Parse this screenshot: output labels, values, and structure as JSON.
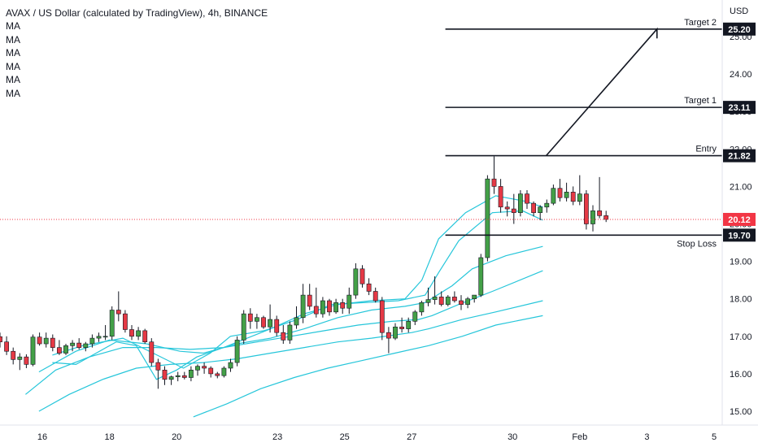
{
  "header": {
    "title": "AVAX / US Dollar (calculated by TradingView), 4h, BINANCE",
    "indicators": [
      "MA",
      "MA",
      "MA",
      "MA",
      "MA",
      "MA"
    ]
  },
  "axis": {
    "currency": "USD"
  },
  "chart_data": {
    "type": "candlestick",
    "title": "AVAX / US Dollar (calculated by TradingView), 4h, BINANCE",
    "ylim": [
      14.7,
      26.3
    ],
    "y_ticks": [
      {
        "value": 15.0,
        "label": "15.00"
      },
      {
        "value": 16.0,
        "label": "16.00"
      },
      {
        "value": 17.0,
        "label": "17.00"
      },
      {
        "value": 18.0,
        "label": "18.00"
      },
      {
        "value": 19.0,
        "label": "19.00"
      },
      {
        "value": 20.0,
        "label": "20.00"
      },
      {
        "value": 21.0,
        "label": "21.00"
      },
      {
        "value": 22.0,
        "label": "22.00"
      },
      {
        "value": 23.0,
        "label": "23.00"
      },
      {
        "value": 24.0,
        "label": "24.00"
      },
      {
        "value": 25.0,
        "label": "25.00"
      }
    ],
    "x_ticks": [
      {
        "day": 16,
        "label": "16"
      },
      {
        "day": 18,
        "label": "18"
      },
      {
        "day": 20,
        "label": "20"
      },
      {
        "day": 23,
        "label": "23"
      },
      {
        "day": 25,
        "label": "25"
      },
      {
        "day": 27,
        "label": "27"
      },
      {
        "day": 30,
        "label": "30"
      },
      {
        "day": 32,
        "label": "Feb"
      },
      {
        "day": 34,
        "label": "3"
      },
      {
        "day": 36,
        "label": "5"
      }
    ],
    "candles": [
      [
        16.99,
        17.1,
        16.7,
        16.85
      ],
      [
        16.85,
        17.0,
        16.5,
        16.6
      ],
      [
        16.6,
        16.7,
        16.25,
        16.38
      ],
      [
        16.38,
        16.55,
        16.1,
        16.45
      ],
      [
        16.45,
        16.52,
        16.15,
        16.25
      ],
      [
        16.25,
        17.05,
        16.2,
        16.98
      ],
      [
        16.98,
        17.1,
        16.75,
        16.8
      ],
      [
        16.8,
        17.1,
        16.7,
        16.95
      ],
      [
        16.95,
        17.05,
        16.6,
        16.7
      ],
      [
        16.7,
        16.9,
        16.5,
        16.55
      ],
      [
        16.55,
        16.8,
        16.5,
        16.75
      ],
      [
        16.75,
        16.9,
        16.6,
        16.82
      ],
      [
        16.82,
        16.95,
        16.65,
        16.7
      ],
      [
        16.7,
        16.85,
        16.6,
        16.8
      ],
      [
        16.8,
        17.05,
        16.7,
        16.95
      ],
      [
        16.95,
        17.1,
        16.85,
        17.0
      ],
      [
        17.0,
        17.3,
        16.9,
        17.0
      ],
      [
        17.0,
        17.8,
        16.9,
        17.7
      ],
      [
        17.7,
        18.2,
        17.4,
        17.6
      ],
      [
        17.6,
        17.7,
        17.1,
        17.18
      ],
      [
        17.18,
        17.3,
        16.9,
        17.0
      ],
      [
        17.0,
        17.25,
        16.9,
        17.15
      ],
      [
        17.15,
        17.2,
        16.8,
        16.85
      ],
      [
        16.85,
        16.95,
        16.2,
        16.3
      ],
      [
        16.3,
        16.4,
        15.6,
        16.1
      ],
      [
        16.1,
        16.2,
        15.7,
        15.85
      ],
      [
        15.85,
        15.95,
        15.7,
        15.92
      ],
      [
        15.92,
        16.05,
        15.8,
        15.95
      ],
      [
        15.95,
        16.05,
        15.85,
        15.9
      ],
      [
        15.9,
        16.2,
        15.8,
        16.1
      ],
      [
        16.1,
        16.25,
        15.95,
        16.2
      ],
      [
        16.2,
        16.3,
        16.0,
        16.15
      ],
      [
        16.15,
        16.2,
        15.9,
        16.0
      ],
      [
        16.0,
        16.05,
        15.88,
        15.95
      ],
      [
        15.95,
        16.2,
        15.9,
        16.15
      ],
      [
        16.15,
        16.4,
        16.05,
        16.3
      ],
      [
        16.3,
        17.0,
        16.2,
        16.9
      ],
      [
        16.9,
        17.7,
        16.8,
        17.6
      ],
      [
        17.6,
        17.75,
        17.2,
        17.4
      ],
      [
        17.4,
        17.6,
        17.2,
        17.5
      ],
      [
        17.5,
        17.55,
        17.2,
        17.25
      ],
      [
        17.25,
        17.85,
        17.1,
        17.45
      ],
      [
        17.45,
        17.55,
        17.0,
        17.1
      ],
      [
        17.1,
        17.3,
        16.8,
        16.9
      ],
      [
        16.9,
        17.4,
        16.8,
        17.3
      ],
      [
        17.3,
        17.8,
        17.2,
        17.5
      ],
      [
        17.5,
        18.4,
        17.35,
        18.1
      ],
      [
        18.1,
        18.4,
        17.7,
        17.8
      ],
      [
        17.8,
        18.3,
        17.5,
        17.6
      ],
      [
        17.6,
        18.05,
        17.5,
        17.95
      ],
      [
        17.95,
        18.0,
        17.55,
        17.65
      ],
      [
        17.65,
        18.0,
        17.6,
        17.9
      ],
      [
        17.9,
        18.0,
        17.6,
        17.75
      ],
      [
        17.75,
        18.3,
        17.6,
        18.1
      ],
      [
        18.1,
        18.95,
        18.0,
        18.8
      ],
      [
        18.8,
        18.9,
        18.3,
        18.4
      ],
      [
        18.4,
        18.55,
        18.1,
        18.2
      ],
      [
        18.2,
        18.3,
        17.9,
        17.95
      ],
      [
        17.95,
        18.05,
        16.9,
        17.1
      ],
      [
        17.1,
        17.25,
        16.55,
        16.95
      ],
      [
        16.95,
        17.35,
        16.9,
        17.25
      ],
      [
        17.25,
        17.5,
        17.1,
        17.2
      ],
      [
        17.2,
        17.5,
        17.1,
        17.4
      ],
      [
        17.4,
        17.7,
        17.3,
        17.65
      ],
      [
        17.65,
        17.95,
        17.55,
        17.9
      ],
      [
        17.9,
        18.3,
        17.8,
        17.98
      ],
      [
        17.98,
        18.6,
        17.85,
        18.05
      ],
      [
        18.05,
        18.2,
        17.8,
        17.85
      ],
      [
        17.85,
        18.1,
        17.8,
        18.05
      ],
      [
        18.05,
        18.2,
        17.9,
        17.95
      ],
      [
        17.95,
        18.1,
        17.7,
        17.85
      ],
      [
        17.85,
        18.05,
        17.75,
        18.0
      ],
      [
        18.0,
        18.1,
        17.9,
        18.1
      ],
      [
        18.1,
        19.2,
        18.05,
        19.1
      ],
      [
        19.1,
        21.3,
        19.0,
        21.2
      ],
      [
        21.2,
        21.8,
        20.8,
        21.0
      ],
      [
        21.0,
        21.2,
        20.3,
        20.45
      ],
      [
        20.45,
        20.6,
        20.2,
        20.4
      ],
      [
        20.4,
        20.8,
        20.0,
        20.3
      ],
      [
        20.3,
        20.9,
        20.2,
        20.8
      ],
      [
        20.8,
        20.9,
        20.4,
        20.55
      ],
      [
        20.55,
        20.6,
        20.2,
        20.3
      ],
      [
        20.3,
        20.5,
        20.1,
        20.45
      ],
      [
        20.45,
        20.65,
        20.3,
        20.55
      ],
      [
        20.55,
        21.05,
        20.5,
        20.95
      ],
      [
        20.95,
        21.2,
        20.6,
        20.7
      ],
      [
        20.7,
        21.1,
        20.6,
        20.85
      ],
      [
        20.85,
        21.0,
        20.5,
        20.6
      ],
      [
        20.6,
        21.3,
        20.5,
        20.8
      ],
      [
        20.8,
        20.9,
        19.85,
        20.0
      ],
      [
        20.0,
        20.5,
        19.8,
        20.35
      ],
      [
        20.35,
        21.25,
        20.15,
        20.22
      ],
      [
        20.22,
        20.35,
        20.05,
        20.12
      ]
    ],
    "moving_averages": [
      {
        "points": [
          [
            16.3,
            16.3
          ],
          [
            17.0,
            16.25
          ],
          [
            18.2,
            16.85
          ],
          [
            18.8,
            16.75
          ],
          [
            19.4,
            15.85
          ],
          [
            20.0,
            16.1
          ],
          [
            20.6,
            16.45
          ],
          [
            21.4,
            16.7
          ],
          [
            22.8,
            17.2
          ],
          [
            23.8,
            17.6
          ],
          [
            24.8,
            17.85
          ],
          [
            25.8,
            17.95
          ],
          [
            26.8,
            18.0
          ],
          [
            27.3,
            18.5
          ],
          [
            27.8,
            19.6
          ],
          [
            28.6,
            20.3
          ],
          [
            29.5,
            20.75
          ],
          [
            30.4,
            20.6
          ],
          [
            30.9,
            20.45
          ]
        ]
      },
      {
        "points": [
          [
            16.3,
            16.5
          ],
          [
            17.2,
            16.75
          ],
          [
            18.4,
            16.95
          ],
          [
            19.3,
            16.55
          ],
          [
            20.2,
            16.15
          ],
          [
            21.0,
            16.55
          ],
          [
            21.6,
            17.0
          ],
          [
            22.6,
            17.15
          ],
          [
            23.6,
            17.45
          ],
          [
            24.6,
            17.85
          ],
          [
            25.6,
            17.9
          ],
          [
            26.6,
            17.95
          ],
          [
            27.4,
            18.1
          ],
          [
            27.8,
            18.7
          ],
          [
            28.4,
            19.55
          ],
          [
            29.4,
            20.3
          ],
          [
            30.3,
            20.35
          ],
          [
            30.9,
            20.1
          ]
        ]
      },
      {
        "points": [
          [
            15.9,
            16.05
          ],
          [
            17.0,
            16.6
          ],
          [
            18.0,
            16.9
          ],
          [
            19.1,
            16.8
          ],
          [
            20.1,
            16.6
          ],
          [
            20.8,
            16.55
          ],
          [
            21.8,
            16.8
          ],
          [
            22.8,
            16.95
          ],
          [
            23.8,
            17.2
          ],
          [
            24.8,
            17.5
          ],
          [
            25.8,
            17.7
          ],
          [
            26.8,
            17.8
          ],
          [
            27.4,
            17.9
          ],
          [
            28.2,
            18.35
          ],
          [
            28.8,
            18.8
          ],
          [
            29.8,
            19.15
          ],
          [
            30.9,
            19.4
          ]
        ]
      },
      {
        "points": [
          [
            15.5,
            15.45
          ],
          [
            16.4,
            16.1
          ],
          [
            17.4,
            16.45
          ],
          [
            18.4,
            16.7
          ],
          [
            19.4,
            16.7
          ],
          [
            20.4,
            16.65
          ],
          [
            21.4,
            16.7
          ],
          [
            22.4,
            16.85
          ],
          [
            23.4,
            17.0
          ],
          [
            24.4,
            17.15
          ],
          [
            25.4,
            17.3
          ],
          [
            26.4,
            17.4
          ],
          [
            27.2,
            17.45
          ],
          [
            27.6,
            17.55
          ],
          [
            28.4,
            17.85
          ],
          [
            29.4,
            18.2
          ],
          [
            30.9,
            18.75
          ]
        ]
      },
      {
        "points": [
          [
            15.9,
            15.0
          ],
          [
            16.8,
            15.45
          ],
          [
            17.8,
            15.85
          ],
          [
            18.8,
            16.15
          ],
          [
            19.8,
            16.25
          ],
          [
            20.8,
            16.3
          ],
          [
            21.8,
            16.4
          ],
          [
            22.8,
            16.55
          ],
          [
            23.8,
            16.7
          ],
          [
            24.8,
            16.85
          ],
          [
            25.8,
            16.95
          ],
          [
            27.0,
            17.1
          ],
          [
            27.5,
            17.2
          ],
          [
            28.5,
            17.45
          ],
          [
            29.5,
            17.65
          ],
          [
            30.9,
            17.95
          ]
        ]
      },
      {
        "points": [
          [
            20.5,
            14.85
          ],
          [
            21.5,
            15.2
          ],
          [
            22.5,
            15.6
          ],
          [
            23.5,
            15.9
          ],
          [
            24.5,
            16.15
          ],
          [
            25.5,
            16.35
          ],
          [
            26.5,
            16.55
          ],
          [
            27.5,
            16.75
          ],
          [
            28.5,
            17.0
          ],
          [
            29.5,
            17.3
          ],
          [
            30.9,
            17.55
          ]
        ]
      }
    ],
    "levels": [
      {
        "name": "Target 2",
        "value": 25.2,
        "label": "25.20",
        "x_from": 28.0
      },
      {
        "name": "Target 1",
        "value": 23.11,
        "label": "23.11",
        "x_from": 28.0
      },
      {
        "name": "Entry",
        "value": 21.82,
        "label": "21.82",
        "x_from": 28.0
      },
      {
        "name": "Stop Loss",
        "value": 19.7,
        "label": "19.70",
        "x_from": 28.0
      }
    ],
    "current_price": {
      "value": 20.12,
      "label": "20.12"
    },
    "projection": {
      "points": [
        [
          31.0,
          21.82
        ],
        [
          34.3,
          25.2
        ],
        [
          34.3,
          24.95
        ]
      ]
    },
    "colors": {
      "up": "#26a69a",
      "up_body": "#43a047",
      "down": "#e53945",
      "ma": "#26c6da",
      "price": "#f23645",
      "level_label": "#131722"
    }
  }
}
